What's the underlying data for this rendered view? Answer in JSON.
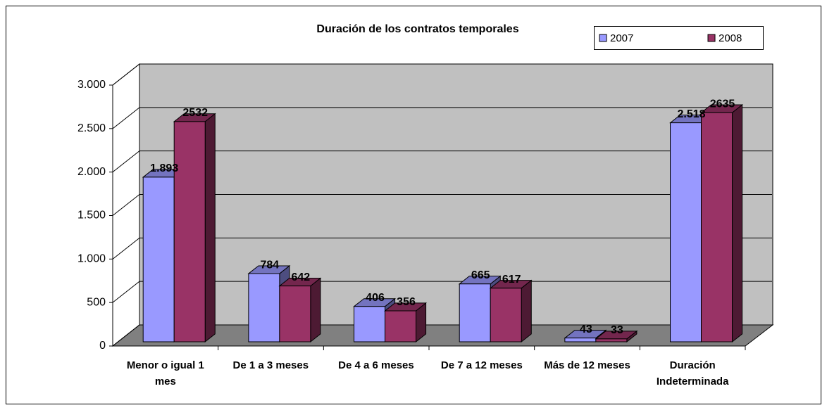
{
  "chart_data": {
    "type": "bar3d",
    "title": "Duración de los contratos temporales",
    "categories": [
      "Menor o igual 1 mes",
      "De 1 a 3 meses",
      "De 4 a 6 meses",
      "De 7 a 12 meses",
      "Más de 12 meses",
      "Duración Indeterminada"
    ],
    "series": [
      {
        "name": "2007",
        "color": "#9999ff",
        "values": [
          1893,
          784,
          406,
          665,
          43,
          2518
        ],
        "value_labels": [
          "1.893",
          "784",
          "406",
          "665",
          "43",
          "2.518"
        ]
      },
      {
        "name": "2008",
        "color": "#993366",
        "values": [
          2532,
          642,
          356,
          617,
          33,
          2635
        ]
      }
    ],
    "ylim": [
      0,
      3000
    ],
    "yticks": [
      0,
      500,
      {
        "value": 1000,
        "label": "1.000"
      },
      {
        "value": 1500,
        "label": "1.500"
      },
      {
        "value": 2000,
        "label": "2.000"
      },
      {
        "value": 2500,
        "label": "2.500"
      },
      {
        "value": 3000,
        "label": "3.000"
      }
    ],
    "grid": true,
    "legend": "top-right"
  }
}
